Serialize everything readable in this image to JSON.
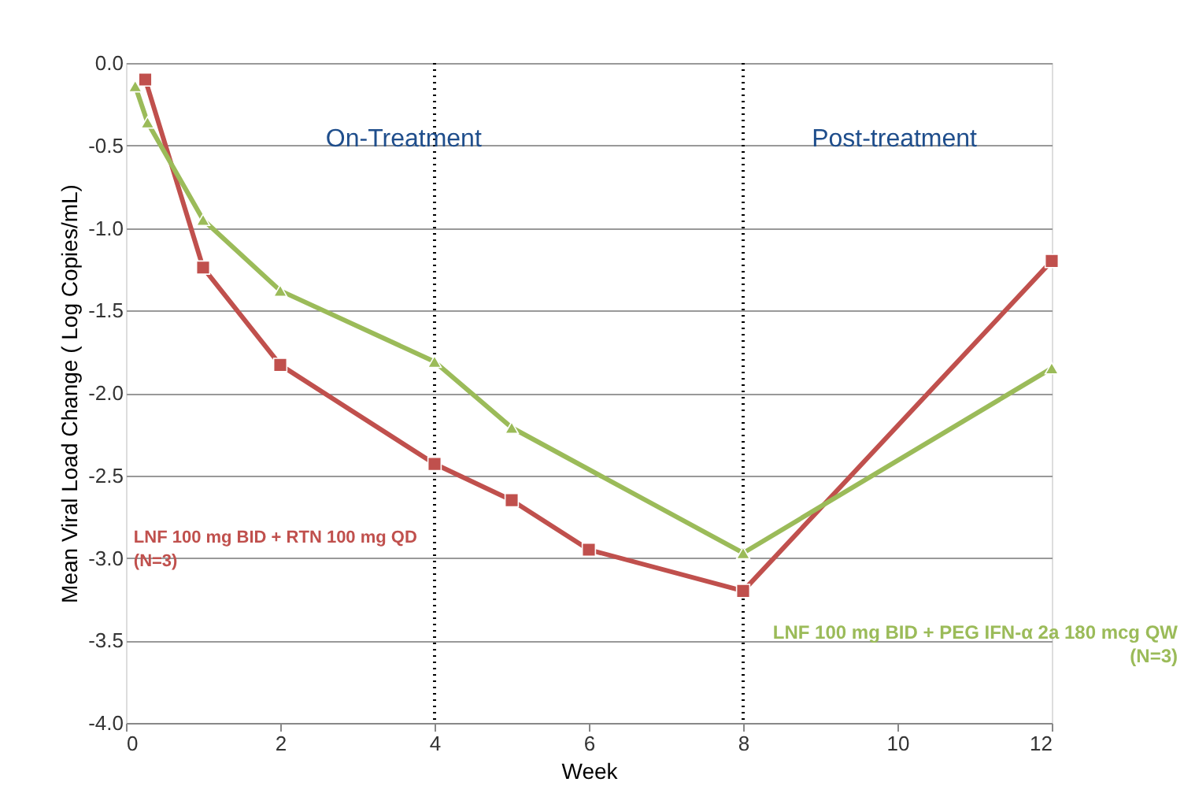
{
  "chart_data": {
    "type": "line",
    "xlabel": "Week",
    "ylabel": "Mean Viral Load Change ( Log Copies/mL)",
    "xlim": [
      0,
      12
    ],
    "xticks": [
      0,
      2,
      4,
      6,
      8,
      10,
      12
    ],
    "ylim": [
      -4.0,
      0.0
    ],
    "yticks": [
      {
        "value": -4,
        "label": "-4.0"
      },
      {
        "value": -3.5,
        "label": "-3.5"
      },
      {
        "value": -3,
        "label": "-3.0"
      },
      {
        "value": -2.5,
        "label": "-2.5"
      },
      {
        "value": -2,
        "label": "-2.0"
      },
      {
        "value": -1.5,
        "label": "-1.5"
      },
      {
        "value": -1,
        "label": "-1.0"
      },
      {
        "value": -0.5,
        "label": "-0.5"
      },
      {
        "value": 0,
        "label": "0.0"
      }
    ],
    "grid": "y",
    "line_style": "solid",
    "series": [
      {
        "name": "LNF 100 mg BID + RTN 100 mg QD (N=3)",
        "color": "#c0504d",
        "marker": "square",
        "x": [
          0.25,
          1,
          2,
          4,
          5,
          6,
          8,
          12
        ],
        "values": [
          -0.1,
          -1.24,
          -1.83,
          -2.43,
          -2.65,
          -2.95,
          -3.2,
          -1.2
        ]
      },
      {
        "name": "LNF 100 mg BID + PEG IFN-α 2a 180 mcg QW (N=3)",
        "color": "#9bbb59",
        "marker": "triangle",
        "x": [
          0.12,
          0.28,
          1,
          2,
          4,
          5,
          8,
          12
        ],
        "values": [
          -0.14,
          -0.36,
          -0.95,
          -1.38,
          -1.81,
          -2.21,
          -2.97,
          -1.85
        ]
      }
    ],
    "ref_lines": [
      {
        "axis": "x",
        "value": 4,
        "color": "#000000",
        "line_style": "dotted"
      },
      {
        "axis": "x",
        "value": 8,
        "color": "#000000",
        "line_style": "dotted"
      }
    ],
    "annotations": [
      "On-Treatment",
      "Post-treatment"
    ]
  }
}
